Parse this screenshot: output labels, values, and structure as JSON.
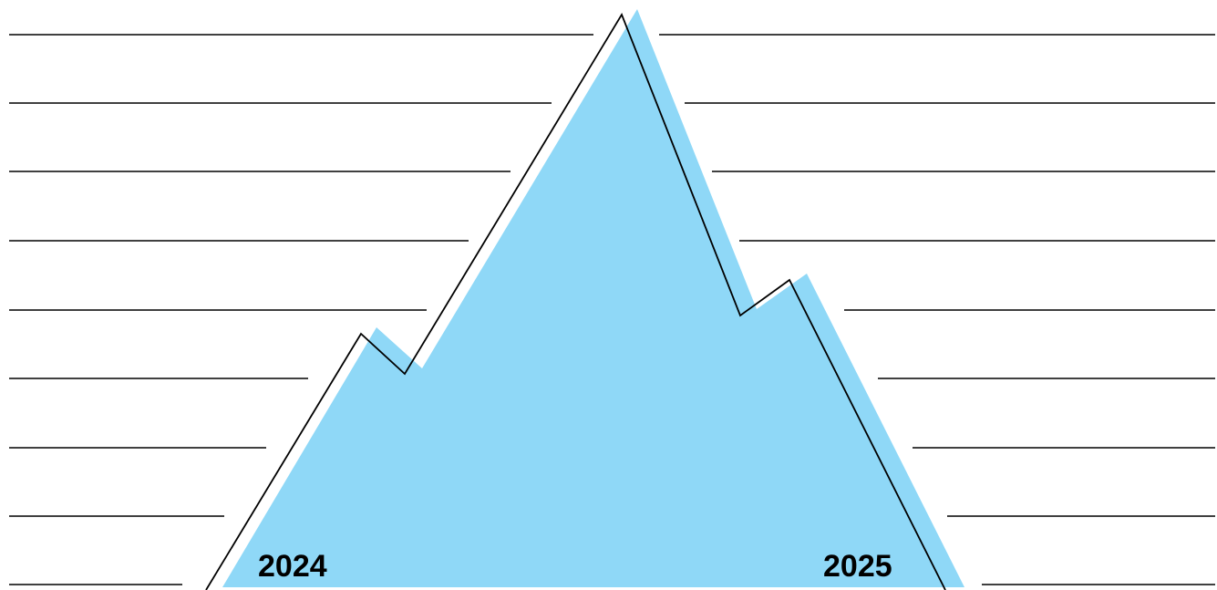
{
  "diagram": {
    "labels": {
      "left_year": "2024",
      "right_year": "2025"
    },
    "colors": {
      "mountain_fill": "#8fd8f7",
      "outline": "#000000",
      "lines": "#000000",
      "text": "#000000",
      "background": "#ffffff"
    }
  }
}
